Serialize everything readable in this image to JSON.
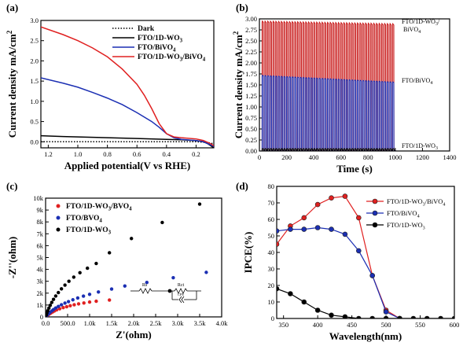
{
  "chart_data": [
    {
      "panel": "(a)",
      "type": "line",
      "xlabel": "Applied potential(V vs RHE)",
      "ylabel": "Current density mA/cm",
      "ylabel_sup": "2",
      "xlim": [
        1.25,
        0.08
      ],
      "ylim": [
        -0.15,
        3.0
      ],
      "xticks": [
        1.2,
        1.0,
        0.8,
        0.6,
        0.4,
        0.2
      ],
      "xtick_labels": [
        "1.2",
        "1.0",
        "0.8",
        "0.6",
        "0.4",
        "0.2"
      ],
      "yticks": [
        0.0,
        0.5,
        1.0,
        1.5,
        2.0,
        2.5,
        3.0
      ],
      "ytick_labels": [
        "0.0",
        "0.5",
        "1.0",
        "1.5",
        "2.0",
        "2.5",
        "3.0"
      ],
      "legend_position": "top-right",
      "series": [
        {
          "name": "Dark",
          "color": "#000000",
          "style": "dotted",
          "x": [
            1.25,
            1.0,
            0.8,
            0.6,
            0.4,
            0.2,
            0.12,
            0.08
          ],
          "y": [
            0.0,
            0.0,
            0.0,
            0.0,
            0.0,
            0.0,
            -0.02,
            -0.05
          ]
        },
        {
          "name": "FTO/1D-WO",
          "sub": "3",
          "color": "#000000",
          "style": "solid",
          "x": [
            1.25,
            1.1,
            1.0,
            0.8,
            0.6,
            0.4,
            0.3,
            0.2,
            0.15,
            0.12,
            0.1,
            0.08
          ],
          "y": [
            0.15,
            0.13,
            0.12,
            0.1,
            0.08,
            0.06,
            0.05,
            0.03,
            0.0,
            -0.05,
            -0.1,
            -0.15
          ]
        },
        {
          "name": "FTO/BiVO",
          "sub": "4",
          "color": "#1b2fb3",
          "style": "solid",
          "x": [
            1.25,
            1.1,
            1.0,
            0.9,
            0.8,
            0.7,
            0.6,
            0.5,
            0.45,
            0.4,
            0.35,
            0.3,
            0.2,
            0.15,
            0.1,
            0.08
          ],
          "y": [
            1.58,
            1.45,
            1.35,
            1.22,
            1.08,
            0.92,
            0.72,
            0.5,
            0.36,
            0.2,
            0.1,
            0.06,
            0.03,
            0.0,
            -0.08,
            -0.12
          ]
        },
        {
          "name": "FTO/1D-WO",
          "sub": "3",
          "name2": "/BiVO",
          "sub2": "4",
          "color": "#e02020",
          "style": "solid",
          "x": [
            1.25,
            1.1,
            1.0,
            0.9,
            0.8,
            0.7,
            0.6,
            0.55,
            0.5,
            0.45,
            0.4,
            0.35,
            0.3,
            0.2,
            0.15,
            0.1,
            0.08
          ],
          "y": [
            2.84,
            2.65,
            2.5,
            2.32,
            2.1,
            1.8,
            1.42,
            1.15,
            0.82,
            0.45,
            0.2,
            0.12,
            0.1,
            0.07,
            0.03,
            -0.05,
            -0.1
          ]
        }
      ]
    },
    {
      "panel": "(b)",
      "type": "line",
      "xlabel": "Time (s)",
      "ylabel": "Current density mA/cm",
      "ylabel_sup": "2",
      "xlim": [
        0,
        1400
      ],
      "ylim": [
        0,
        3.0
      ],
      "xticks": [
        0,
        200,
        400,
        600,
        800,
        1000,
        1200,
        1400
      ],
      "xtick_labels": [
        "0",
        "200",
        "400",
        "600",
        "800",
        "1000",
        "1200",
        "1400"
      ],
      "yticks": [
        0.0,
        0.25,
        0.5,
        0.75,
        1.0,
        1.25,
        1.5,
        1.75,
        2.0,
        2.25,
        2.5,
        2.75,
        3.0
      ],
      "ytick_labels": [
        "0.00",
        "0.25",
        "0.50",
        "0.75",
        "1.00",
        "1.25",
        "1.50",
        "1.75",
        "2.00",
        "2.25",
        "2.50",
        "2.75",
        "3.00"
      ],
      "chopping": {
        "start": 20,
        "end": 1000,
        "period": 20,
        "on_fraction": 0.5
      },
      "series": [
        {
          "name": "FTO/1D-WO",
          "sub": "3",
          "name2": "/",
          "line2": "BiVO",
          "sub2": "4",
          "color": "#c81818",
          "on_start": 2.92,
          "on_end": 2.86
        },
        {
          "name": "FTO/BiVO",
          "sub": "4",
          "color": "#1b2fb3",
          "on_start": 1.7,
          "on_end": 1.55
        },
        {
          "name": "FTO/1D-WO",
          "sub": "3",
          "color": "#000000",
          "on_start": 0.05,
          "on_end": 0.05
        }
      ]
    },
    {
      "panel": "(c)",
      "type": "scatter",
      "xlabel": "Z'(ohm)",
      "ylabel": "-Z''(ohm)",
      "xlim": [
        0,
        4000
      ],
      "ylim": [
        0,
        10000
      ],
      "xticks": [
        0,
        500,
        1000,
        1500,
        2000,
        2500,
        3000,
        3500,
        4000
      ],
      "xtick_labels": [
        "0.0",
        "500.0",
        "1.0k",
        "1.5k",
        "2.0k",
        "2.5k",
        "3.0k",
        "3.5k",
        "4.0k"
      ],
      "yticks": [
        0,
        1000,
        2000,
        3000,
        4000,
        5000,
        6000,
        7000,
        8000,
        9000,
        10000
      ],
      "ytick_labels": [
        "0",
        "1k",
        "2k",
        "3k",
        "4k",
        "5k",
        "6k",
        "7k",
        "8k",
        "9k",
        "10k"
      ],
      "legend_position": "top-left",
      "circuit_labels": [
        "Rs",
        "Rct",
        "CPE"
      ],
      "series": [
        {
          "name": "FTO/1D-WO",
          "sub": "3",
          "name2": "/BVO",
          "sub2": "4",
          "color": "#e02020",
          "x": [
            20,
            40,
            60,
            90,
            120,
            160,
            200,
            250,
            320,
            400,
            480,
            560,
            650,
            750,
            870,
            1000,
            1150,
            1450
          ],
          "y": [
            60,
            120,
            180,
            260,
            330,
            420,
            500,
            590,
            680,
            780,
            860,
            940,
            1020,
            1100,
            1170,
            1250,
            1320,
            1420
          ]
        },
        {
          "name": "FTO/BVO",
          "sub": "4",
          "color": "#1b2fb3",
          "x": [
            20,
            40,
            70,
            100,
            140,
            180,
            230,
            290,
            360,
            440,
            520,
            620,
            730,
            860,
            1000,
            1200,
            1500,
            1800,
            2300,
            2900,
            3650
          ],
          "y": [
            80,
            170,
            270,
            380,
            500,
            620,
            750,
            880,
            1020,
            1160,
            1290,
            1440,
            1590,
            1750,
            1900,
            2100,
            2350,
            2600,
            2900,
            3300,
            3750
          ]
        },
        {
          "name": "FTO/1D-WO",
          "sub": "3",
          "color": "#000000",
          "x": [
            15,
            30,
            50,
            75,
            105,
            140,
            180,
            230,
            290,
            360,
            440,
            530,
            640,
            780,
            950,
            1150,
            1450,
            1950,
            2650,
            3500
          ],
          "y": [
            150,
            330,
            520,
            740,
            970,
            1220,
            1480,
            1760,
            2050,
            2360,
            2680,
            3000,
            3350,
            3720,
            4100,
            4500,
            5400,
            6600,
            7950,
            9500
          ]
        }
      ]
    },
    {
      "panel": "(d)",
      "type": "line",
      "xlabel": "Wavelength(nm)",
      "ylabel": "IPCE(%)",
      "xlim": [
        340,
        600
      ],
      "ylim": [
        0,
        80
      ],
      "xticks": [
        350,
        400,
        450,
        500,
        550,
        600
      ],
      "xtick_labels": [
        "350",
        "400",
        "450",
        "500",
        "550",
        "600"
      ],
      "yticks": [
        0,
        10,
        20,
        30,
        40,
        50,
        60,
        70,
        80
      ],
      "ytick_labels": [
        "0",
        "10",
        "20",
        "30",
        "40",
        "50",
        "60",
        "70",
        "80"
      ],
      "legend_position": "top-right",
      "series": [
        {
          "name": "FTO/1D-WO",
          "sub": "3",
          "name2": "/BiVO",
          "sub2": "4",
          "color": "#e02020",
          "x": [
            340,
            360,
            380,
            400,
            420,
            440,
            460,
            480,
            500,
            520
          ],
          "y": [
            45,
            56,
            61,
            69,
            73,
            74,
            61,
            26,
            5,
            0
          ]
        },
        {
          "name": "FTO/BiVO",
          "sub": "4",
          "color": "#1b2fb3",
          "x": [
            340,
            360,
            380,
            400,
            420,
            440,
            460,
            480,
            500,
            520
          ],
          "y": [
            53,
            54,
            54,
            55,
            54,
            51,
            41,
            26,
            4,
            0
          ]
        },
        {
          "name": "FTO/1D-WO",
          "sub": "3",
          "color": "#000000",
          "x": [
            340,
            360,
            380,
            400,
            420,
            440,
            460,
            480,
            500,
            520,
            540,
            560,
            580,
            600
          ],
          "y": [
            18,
            15,
            10,
            5,
            2,
            1,
            0,
            0,
            0,
            0,
            0,
            0,
            0,
            0
          ]
        }
      ]
    }
  ]
}
